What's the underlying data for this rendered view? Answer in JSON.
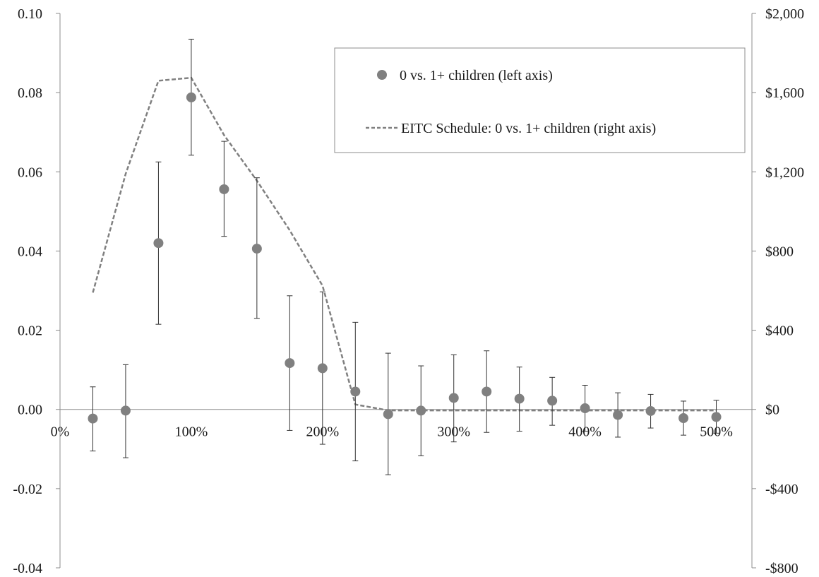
{
  "chart_data": {
    "type": "scatter",
    "left_axis": {
      "ylim": [
        -0.04,
        0.1
      ],
      "ticks": [
        -0.04,
        -0.02,
        0.0,
        0.02,
        0.04,
        0.06,
        0.08,
        0.1
      ],
      "tick_labels": [
        "-0.04",
        "-0.02",
        "0.00",
        "0.02",
        "0.04",
        "0.06",
        "0.08",
        "0.10"
      ]
    },
    "right_axis": {
      "ylim": [
        -800,
        2000
      ],
      "ticks": [
        -800,
        -400,
        0,
        400,
        800,
        1200,
        1600,
        2000
      ],
      "tick_labels": [
        "-$800",
        "-$400",
        "$0",
        "$400",
        "$800",
        "$1,200",
        "$1,600",
        "$2,000"
      ]
    },
    "x_axis": {
      "xlim": [
        0,
        525
      ],
      "ticks": [
        0,
        100,
        200,
        300,
        400,
        500
      ],
      "tick_labels": [
        "0%",
        "100%",
        "200%",
        "300%",
        "400%",
        "500%"
      ]
    },
    "grid": false,
    "legend": {
      "placement": "top-right",
      "entries": [
        "0 vs. 1+ children (left axis)",
        "EITC Schedule: 0 vs. 1+ children (right axis)"
      ]
    },
    "series": [
      {
        "name": "0 vs. 1+ children (left axis)",
        "kind": "points-with-error-bars",
        "axis": "left",
        "color": "#808080",
        "x": [
          25,
          50,
          75,
          100,
          125,
          150,
          175,
          200,
          225,
          250,
          275,
          300,
          325,
          350,
          375,
          400,
          425,
          450,
          475,
          500
        ],
        "y": [
          -0.0023,
          -0.0003,
          0.042,
          0.0788,
          0.0556,
          0.0406,
          0.0117,
          0.0104,
          0.0045,
          -0.0012,
          -0.0003,
          0.0029,
          0.0045,
          0.0027,
          0.0022,
          0.0003,
          -0.0014,
          -0.0004,
          -0.0022,
          -0.0019
        ],
        "lower": [
          -0.0105,
          -0.0122,
          0.0215,
          0.0642,
          0.0437,
          0.023,
          -0.0053,
          -0.0088,
          -0.013,
          -0.0165,
          -0.0117,
          -0.0082,
          -0.0058,
          -0.0055,
          -0.004,
          -0.0055,
          -0.007,
          -0.0047,
          -0.0065,
          -0.006
        ],
        "upper": [
          0.0057,
          0.0113,
          0.0625,
          0.0935,
          0.0677,
          0.0585,
          0.0287,
          0.0297,
          0.022,
          0.0142,
          0.011,
          0.0138,
          0.0148,
          0.0107,
          0.0081,
          0.0061,
          0.0042,
          0.0038,
          0.0021,
          0.0023
        ]
      },
      {
        "name": "EITC Schedule: 0 vs. 1+ children (right axis)",
        "kind": "line",
        "axis": "right",
        "style": "dashed",
        "color": "#808080",
        "x": [
          25,
          50,
          75,
          100,
          125,
          150,
          175,
          200,
          225,
          250,
          275,
          300,
          325,
          350,
          375,
          400,
          425,
          450,
          475,
          500
        ],
        "y": [
          590,
          1190,
          1660,
          1675,
          1385,
          1155,
          905,
          625,
          25,
          -5,
          -5,
          -5,
          -5,
          -5,
          -5,
          -5,
          -5,
          -5,
          -5,
          -5
        ]
      }
    ]
  }
}
